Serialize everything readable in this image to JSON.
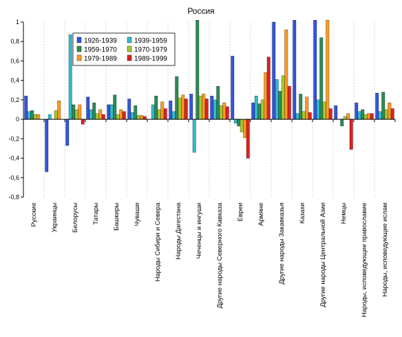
{
  "chart_data": {
    "type": "bar",
    "title": "Россия",
    "xlabel": "",
    "ylabel": "",
    "ylim": [
      -0.8,
      1.0
    ],
    "yticks": [
      "-0,8",
      "-0,6",
      "-0,4",
      "-0,2",
      "0",
      "0,2",
      "0,4",
      "0,6",
      "0,8",
      "1"
    ],
    "grid": "vertical dashed separators",
    "legend": "top-left, inside plot",
    "categories": [
      "Русские",
      "Украинцы",
      "Белорусы",
      "Татары",
      "Башкиры",
      "Чуваши",
      "Народы Сибири и Севера",
      "Народы Дагестана",
      "Чеченцы и ингуши",
      "Другие народы Северного Кавказа",
      "Евреи",
      "Армяне",
      "Другие народы Закавказья",
      "Казахи",
      "Другие народы Центральной Азии",
      "Немцы",
      "Народы, исповедующие православие",
      "Народы, исповедующие ислам"
    ],
    "series": [
      {
        "name": "1926-1939",
        "color": "#3355dd",
        "values": [
          0.24,
          -0.54,
          -0.27,
          0.23,
          0.15,
          0.21,
          0.0,
          0.19,
          0.26,
          0.24,
          0.65,
          0.17,
          1.0,
          1.02,
          1.02,
          0.14,
          0.17,
          0.27
        ]
      },
      {
        "name": "1939-1959",
        "color": "#33bbcc",
        "values": [
          0.08,
          0.05,
          0.87,
          0.1,
          0.15,
          0.07,
          0.15,
          0.08,
          -0.34,
          0.2,
          -0.04,
          0.24,
          0.41,
          0.06,
          0.2,
          0.0,
          0.08,
          0.08
        ]
      },
      {
        "name": "1959-1970",
        "color": "#2e8b57",
        "values": [
          0.09,
          0.0,
          0.15,
          0.17,
          0.25,
          0.14,
          0.24,
          0.44,
          1.02,
          0.34,
          -0.07,
          0.16,
          0.29,
          0.26,
          0.84,
          -0.07,
          0.1,
          0.28
        ]
      },
      {
        "name": "1970-1979",
        "color": "#a8c832",
        "values": [
          0.05,
          0.09,
          0.1,
          0.06,
          0.05,
          0.04,
          0.1,
          0.22,
          0.24,
          0.14,
          -0.13,
          0.2,
          0.45,
          0.08,
          0.18,
          0.03,
          0.05,
          0.1
        ]
      },
      {
        "name": "1979-1989",
        "color": "#ff9922",
        "values": [
          0.05,
          0.19,
          0.15,
          0.1,
          0.1,
          0.04,
          0.18,
          0.25,
          0.26,
          0.17,
          -0.19,
          0.48,
          0.92,
          0.23,
          1.02,
          0.06,
          0.06,
          0.17
        ]
      },
      {
        "name": "1989-1999",
        "color": "#dd2222",
        "values": [
          0.0,
          0.0,
          -0.05,
          0.05,
          0.08,
          0.03,
          0.11,
          0.21,
          0.21,
          0.13,
          -0.4,
          0.64,
          0.34,
          0.07,
          0.11,
          -0.31,
          0.06,
          0.11
        ]
      }
    ]
  }
}
